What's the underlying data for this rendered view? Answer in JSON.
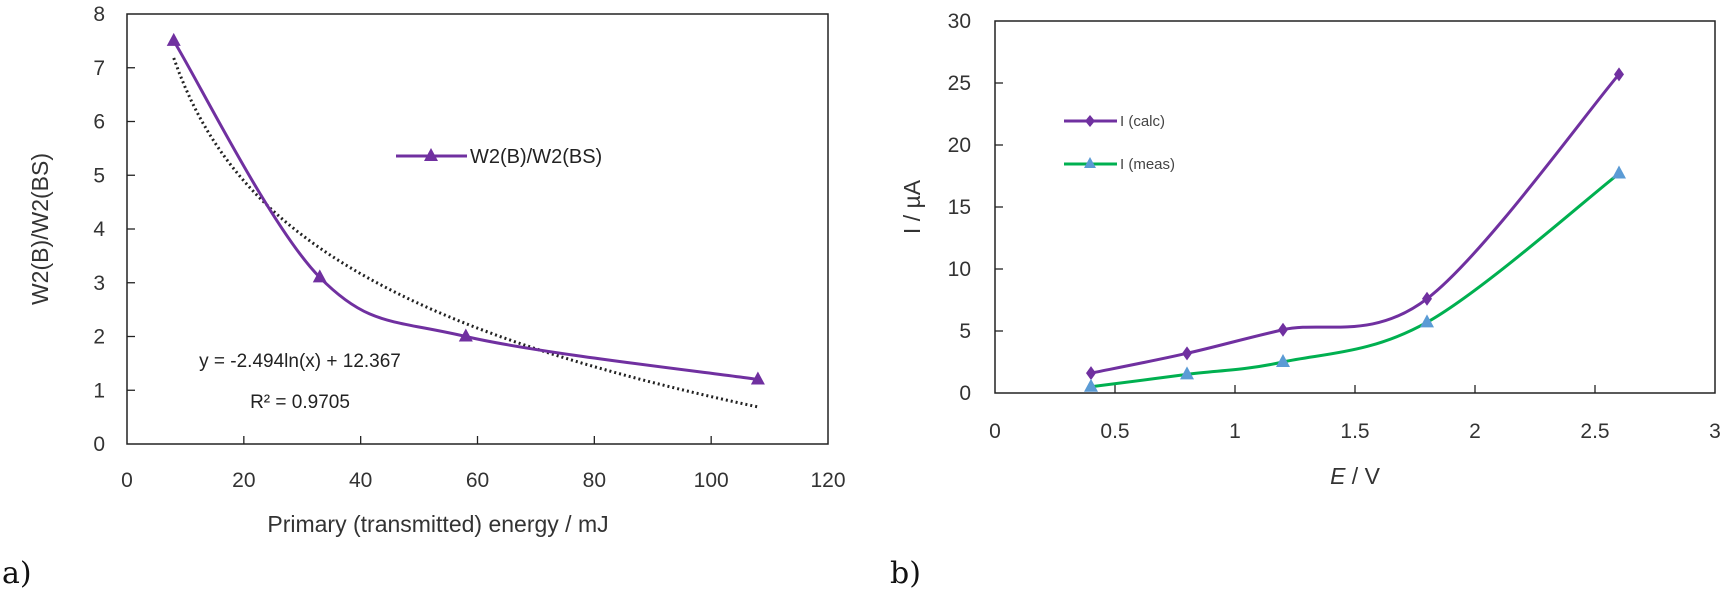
{
  "chart_data": [
    {
      "type": "line",
      "panel_label": "a)",
      "xlabel": "Primary (transmitted) energy / mJ",
      "ylabel": "W2(B)/W2(BS)",
      "xlim": [
        0,
        120
      ],
      "ylim": [
        0,
        8
      ],
      "xticks": [
        "0",
        "20",
        "40",
        "60",
        "80",
        "100",
        "120"
      ],
      "yticks": [
        "0",
        "1",
        "2",
        "3",
        "4",
        "5",
        "6",
        "7",
        "8"
      ],
      "grid": false,
      "legend_position": "top-center",
      "series": [
        {
          "name": "W2(B)/W2(BS)",
          "marker": "triangle",
          "color": "#7030A0",
          "smooth": true,
          "x": [
            8,
            33,
            58,
            108
          ],
          "y": [
            7.5,
            3.1,
            2.0,
            1.2
          ]
        }
      ],
      "trendline": {
        "type": "logarithmic",
        "a": -2.494,
        "b": 12.367,
        "x_range": [
          8,
          108
        ],
        "color": "#222222",
        "style": "dotted",
        "equation": "y = -2.494ln(x) + 12.367",
        "r_squared": "R² = 0.9705"
      }
    },
    {
      "type": "line",
      "panel_label": "b)",
      "xlabel_italic": "E",
      "xlabel_rest": " / V",
      "ylabel": "I / µA",
      "xlim": [
        0,
        3
      ],
      "ylim": [
        0,
        30
      ],
      "xticks": [
        "0",
        "0.5",
        "1",
        "1.5",
        "2",
        "2.5",
        "3"
      ],
      "yticks": [
        "0",
        "5",
        "10",
        "15",
        "20",
        "25",
        "30"
      ],
      "grid": false,
      "legend_position": "upper-left",
      "series": [
        {
          "name": "I (calc)",
          "marker": "diamond",
          "color": "#7030A0",
          "marker_color": "#7030A0",
          "smooth": true,
          "x": [
            0.4,
            0.8,
            1.2,
            1.8,
            2.6
          ],
          "y": [
            1.6,
            3.2,
            5.1,
            7.6,
            25.7
          ]
        },
        {
          "name": "I (meas)",
          "marker": "triangle",
          "color": "#00B050",
          "marker_color": "#5B9BD5",
          "smooth": true,
          "x": [
            0.4,
            0.8,
            1.2,
            1.8,
            2.6
          ],
          "y": [
            0.5,
            1.5,
            2.5,
            5.7,
            17.7
          ]
        }
      ]
    }
  ]
}
